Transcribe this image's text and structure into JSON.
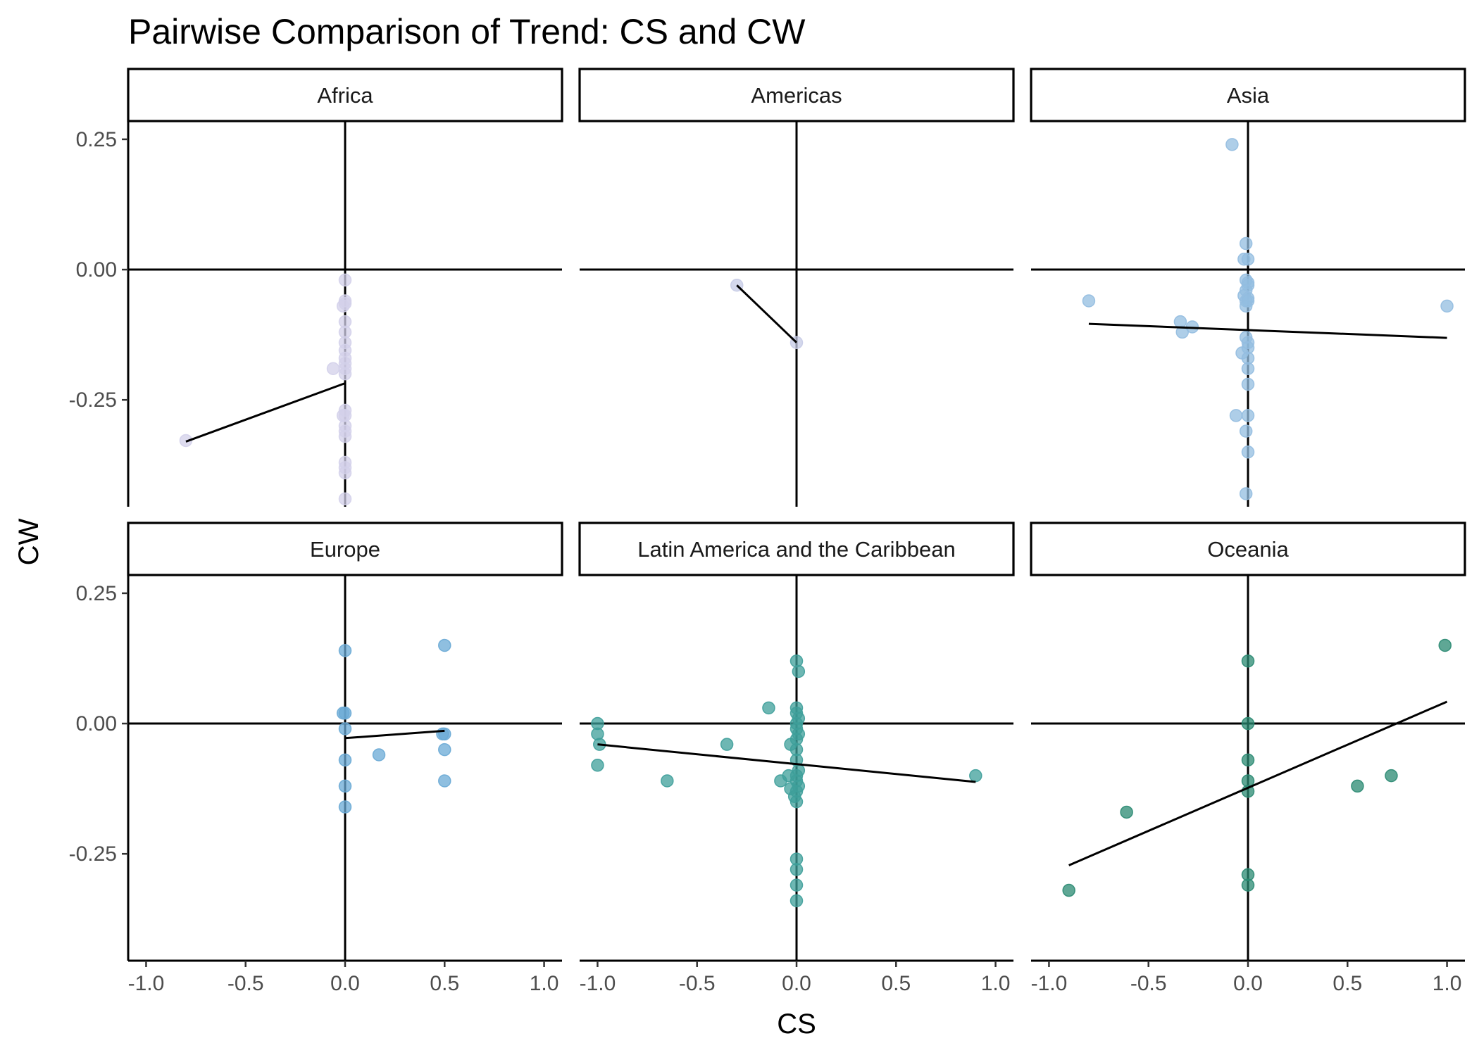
{
  "chart_data": {
    "type": "scatter",
    "title": "Pairwise Comparison of Trend: CS and CW",
    "xlabel": "CS",
    "ylabel": "CW",
    "xlim": [
      -1.09,
      1.09
    ],
    "ylim": [
      -0.455,
      0.285
    ],
    "x_ticks": [
      -1.0,
      -0.5,
      0.0,
      0.5,
      1.0
    ],
    "x_tick_labels": [
      "-1.0",
      "-0.5",
      "0.0",
      "0.5",
      "1.0"
    ],
    "y_ticks": [
      -0.25,
      0.0,
      0.25
    ],
    "y_tick_labels": [
      "-0.25",
      "0.00",
      "0.25"
    ],
    "reference_lines": {
      "x": 0,
      "y": 0
    },
    "grid": false,
    "legend": "none",
    "layout": {
      "rows": 2,
      "cols": 3
    },
    "panels": [
      {
        "name": "Africa",
        "color": "#d3d0ea",
        "points": [
          [
            -0.8,
            -0.328
          ],
          [
            0,
            -0.02
          ],
          [
            0,
            -0.06
          ],
          [
            0,
            -0.065
          ],
          [
            -0.01,
            -0.07
          ],
          [
            0,
            -0.1
          ],
          [
            0,
            -0.12
          ],
          [
            0,
            -0.14
          ],
          [
            0,
            -0.155
          ],
          [
            0,
            -0.17
          ],
          [
            0,
            -0.18
          ],
          [
            -0.06,
            -0.19
          ],
          [
            0,
            -0.19
          ],
          [
            0,
            -0.2
          ],
          [
            0,
            -0.27
          ],
          [
            -0.01,
            -0.28
          ],
          [
            0,
            -0.28
          ],
          [
            0,
            -0.3
          ],
          [
            0,
            -0.31
          ],
          [
            0,
            -0.32
          ],
          [
            0,
            -0.37
          ],
          [
            0,
            -0.38
          ],
          [
            0,
            -0.39
          ],
          [
            0,
            -0.44
          ]
        ],
        "trend": [
          [
            -0.8,
            -0.33
          ],
          [
            0,
            -0.218
          ]
        ]
      },
      {
        "name": "Americas",
        "color": "#c6cbe6",
        "points": [
          [
            -0.3,
            -0.03
          ],
          [
            0,
            -0.14
          ]
        ],
        "trend": [
          [
            -0.3,
            -0.03
          ],
          [
            0,
            -0.14
          ]
        ]
      },
      {
        "name": "Asia",
        "color": "#93bde0",
        "points": [
          [
            -0.08,
            0.24
          ],
          [
            -0.01,
            0.05
          ],
          [
            -0.02,
            0.02
          ],
          [
            0,
            0.02
          ],
          [
            -0.01,
            -0.02
          ],
          [
            0,
            -0.025
          ],
          [
            0,
            -0.03
          ],
          [
            -0.01,
            -0.04
          ],
          [
            -0.02,
            -0.05
          ],
          [
            0,
            -0.055
          ],
          [
            -0.01,
            -0.06
          ],
          [
            0,
            -0.06
          ],
          [
            -0.01,
            -0.07
          ],
          [
            -0.8,
            -0.06
          ],
          [
            1.0,
            -0.07
          ],
          [
            -0.34,
            -0.1
          ],
          [
            -0.28,
            -0.11
          ],
          [
            -0.33,
            -0.12
          ],
          [
            -0.01,
            -0.13
          ],
          [
            0,
            -0.14
          ],
          [
            0,
            -0.15
          ],
          [
            -0.03,
            -0.16
          ],
          [
            0,
            -0.17
          ],
          [
            0,
            -0.19
          ],
          [
            0,
            -0.22
          ],
          [
            -0.06,
            -0.28
          ],
          [
            0,
            -0.28
          ],
          [
            -0.01,
            -0.31
          ],
          [
            0,
            -0.35
          ],
          [
            -0.01,
            -0.43
          ]
        ],
        "trend": [
          [
            -0.8,
            -0.104
          ],
          [
            1.0,
            -0.131
          ]
        ]
      },
      {
        "name": "Europe",
        "color": "#6aaad5",
        "points": [
          [
            0,
            0.14
          ],
          [
            0.5,
            0.15
          ],
          [
            -0.01,
            0.02
          ],
          [
            0,
            0.02
          ],
          [
            0,
            -0.01
          ],
          [
            0.5,
            -0.02
          ],
          [
            0.49,
            -0.02
          ],
          [
            0.17,
            -0.06
          ],
          [
            0,
            -0.07
          ],
          [
            0.5,
            -0.05
          ],
          [
            0,
            -0.12
          ],
          [
            0.5,
            -0.11
          ],
          [
            0,
            -0.16
          ]
        ],
        "trend": [
          [
            0,
            -0.028
          ],
          [
            0.5,
            -0.014
          ]
        ]
      },
      {
        "name": "Latin America and the Caribbean",
        "color": "#3e9f9a",
        "points": [
          [
            -1.0,
            0.0
          ],
          [
            -1.0,
            -0.02
          ],
          [
            -0.99,
            -0.04
          ],
          [
            -1.0,
            -0.08
          ],
          [
            -0.65,
            -0.11
          ],
          [
            -0.35,
            -0.04
          ],
          [
            -0.14,
            0.03
          ],
          [
            -0.08,
            -0.11
          ],
          [
            -0.03,
            -0.04
          ],
          [
            -0.04,
            -0.1
          ],
          [
            -0.03,
            -0.125
          ],
          [
            0,
            0.12
          ],
          [
            0.01,
            0.1
          ],
          [
            0,
            0.03
          ],
          [
            0,
            0.02
          ],
          [
            0.01,
            0.01
          ],
          [
            0,
            0.0
          ],
          [
            0,
            -0.01
          ],
          [
            0.01,
            -0.02
          ],
          [
            0,
            -0.03
          ],
          [
            0,
            -0.05
          ],
          [
            0,
            -0.07
          ],
          [
            0.01,
            -0.09
          ],
          [
            0,
            -0.1
          ],
          [
            0,
            -0.11
          ],
          [
            0.01,
            -0.12
          ],
          [
            0,
            -0.13
          ],
          [
            -0.01,
            -0.14
          ],
          [
            0,
            -0.15
          ],
          [
            0,
            -0.26
          ],
          [
            0,
            -0.28
          ],
          [
            0,
            -0.31
          ],
          [
            0,
            -0.34
          ],
          [
            0.9,
            -0.1
          ]
        ],
        "trend": [
          [
            -1.0,
            -0.04
          ],
          [
            0.9,
            -0.112
          ]
        ]
      },
      {
        "name": "Oceania",
        "color": "#2a8a72",
        "points": [
          [
            -0.9,
            -0.32
          ],
          [
            -0.61,
            -0.17
          ],
          [
            0,
            0.12
          ],
          [
            0,
            0.0
          ],
          [
            0,
            -0.07
          ],
          [
            0,
            -0.11
          ],
          [
            0,
            -0.13
          ],
          [
            0,
            -0.29
          ],
          [
            0,
            -0.31
          ],
          [
            0.55,
            -0.12
          ],
          [
            0.72,
            -0.1
          ],
          [
            0.99,
            0.15
          ]
        ],
        "trend": [
          [
            -0.9,
            -0.272
          ],
          [
            1.0,
            0.042
          ]
        ]
      }
    ]
  }
}
